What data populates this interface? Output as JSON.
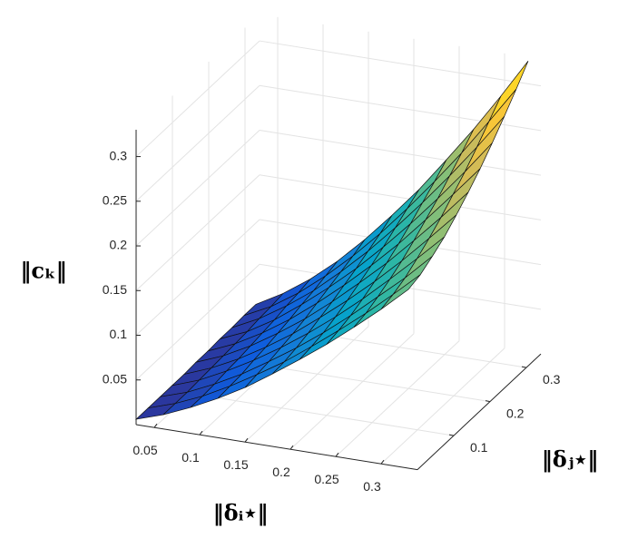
{
  "chart_data": {
    "type": "surface",
    "x_label": "‖δᵢ⋆‖",
    "y_label": "‖δⱼ⋆‖",
    "z_label": "‖cₖ‖",
    "x": [
      0.03,
      0.06,
      0.09,
      0.12,
      0.15,
      0.18,
      0.21,
      0.24,
      0.27,
      0.3,
      0.33
    ],
    "y": [
      0,
      0.033,
      0.066,
      0.099,
      0.132,
      0.165,
      0.198,
      0.231,
      0.264,
      0.297,
      0.33
    ],
    "z": [
      [
        0.006,
        0.016,
        0.029,
        0.044,
        0.061,
        0.081,
        0.102,
        0.124,
        0.148,
        0.173,
        0.2
      ],
      [
        0.006,
        0.016,
        0.029,
        0.045,
        0.063,
        0.082,
        0.104,
        0.127,
        0.151,
        0.177,
        0.204
      ],
      [
        0.006,
        0.016,
        0.03,
        0.046,
        0.065,
        0.085,
        0.107,
        0.131,
        0.157,
        0.183,
        0.212
      ],
      [
        0.006,
        0.017,
        0.032,
        0.049,
        0.068,
        0.089,
        0.112,
        0.137,
        0.164,
        0.192,
        0.221
      ],
      [
        0.006,
        0.018,
        0.033,
        0.051,
        0.071,
        0.094,
        0.118,
        0.144,
        0.172,
        0.202,
        0.233
      ],
      [
        0.007,
        0.019,
        0.035,
        0.054,
        0.075,
        0.099,
        0.125,
        0.152,
        0.182,
        0.213,
        0.246
      ],
      [
        0.007,
        0.02,
        0.037,
        0.057,
        0.08,
        0.105,
        0.132,
        0.161,
        0.193,
        0.226,
        0.26
      ],
      [
        0.008,
        0.021,
        0.039,
        0.061,
        0.085,
        0.111,
        0.14,
        0.171,
        0.204,
        0.239,
        0.276
      ],
      [
        0.008,
        0.023,
        0.042,
        0.064,
        0.09,
        0.118,
        0.149,
        0.182,
        0.217,
        0.254,
        0.293
      ],
      [
        0.009,
        0.024,
        0.044,
        0.068,
        0.095,
        0.125,
        0.158,
        0.193,
        0.23,
        0.27,
        0.311
      ],
      [
        0.009,
        0.026,
        0.047,
        0.072,
        0.101,
        0.133,
        0.167,
        0.205,
        0.244,
        0.286,
        0.33
      ]
    ],
    "xlim": [
      0.03,
      0.34
    ],
    "ylim": [
      0,
      0.34
    ],
    "zlim": [
      0,
      0.33
    ],
    "xticks": [
      0.05,
      0.1,
      0.15,
      0.2,
      0.25,
      0.3
    ],
    "yticks": [
      0.1,
      0.2,
      0.3
    ],
    "zticks": [
      0.05,
      0.1,
      0.15,
      0.2,
      0.25,
      0.3
    ],
    "grid": true,
    "colormap": "parula"
  }
}
